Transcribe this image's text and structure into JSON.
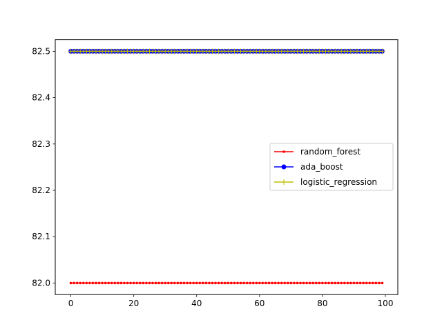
{
  "chart_data": {
    "type": "line",
    "title": "",
    "xlabel": "",
    "ylabel": "",
    "xlim": [
      -4.95,
      103.95
    ],
    "ylim": [
      81.975,
      82.525
    ],
    "xticks": [
      0,
      20,
      40,
      60,
      80,
      100
    ],
    "yticks": [
      82.0,
      82.1,
      82.2,
      82.3,
      82.4,
      82.5
    ],
    "xtick_labels": [
      "0",
      "20",
      "40",
      "60",
      "80",
      "100"
    ],
    "ytick_labels": [
      "82.0",
      "82.1",
      "82.2",
      "82.3",
      "82.4",
      "82.5"
    ],
    "grid": false,
    "legend_position": "center-right",
    "x": {
      "start": 0,
      "end": 99,
      "step": 1
    },
    "series": [
      {
        "name": "random_forest",
        "color": "#ff0000",
        "marker": "point",
        "constant_value": 82.0
      },
      {
        "name": "ada_boost",
        "color": "#0000ff",
        "marker": "circle",
        "constant_value": 82.5
      },
      {
        "name": "logistic_regression",
        "color": "#bfbf00",
        "marker": "plus",
        "constant_value": 82.5
      }
    ]
  }
}
